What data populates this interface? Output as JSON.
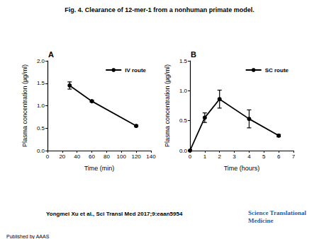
{
  "title": "Fig. 4. Clearance of 12-mer-1 from a nonhuman primate model.",
  "citation": "Yongmei Xu et al., Sci Transl Med 2017;9:eaan5954",
  "journal": "Science Translational Medicine",
  "publisher": "Published by AAAS",
  "chart_data": [
    {
      "type": "line",
      "annotations": [
        "A"
      ],
      "x_label": "Time (min)",
      "y_label": "Plasma concentration (µg/ml)",
      "series": [
        {
          "name": "IV route",
          "color": "#000000",
          "marker": "circle",
          "line_style": "solid",
          "x": [
            30,
            60,
            120
          ],
          "values": [
            1.45,
            1.1,
            0.55
          ],
          "errors": [
            0.08,
            0.02,
            0.02
          ]
        }
      ],
      "xlim": [
        0,
        140
      ],
      "xticks": [
        0,
        20,
        40,
        60,
        80,
        100,
        120,
        140
      ],
      "ylim": [
        0,
        2
      ],
      "yticks": [
        {
          "value": 0,
          "label": "0.0"
        },
        {
          "value": 0.5,
          "label": "0.5"
        },
        {
          "value": 1,
          "label": "1.0"
        },
        {
          "value": 1.5,
          "label": "1.5"
        },
        {
          "value": 2,
          "label": "2.0"
        }
      ],
      "grid": false,
      "legend": "upper right"
    },
    {
      "type": "line",
      "annotations": [
        "B"
      ],
      "x_label": "Time (hours)",
      "y_label": "Plasma concentration (µg/ml)",
      "series": [
        {
          "name": "SC route",
          "color": "#000000",
          "marker": "circle",
          "line_style": "solid",
          "x": [
            0,
            1,
            2,
            4,
            6
          ],
          "values": [
            0,
            0.55,
            0.86,
            0.53,
            0.25
          ],
          "errors": [
            0.02,
            0.08,
            0.15,
            0.15,
            0.02
          ]
        }
      ],
      "xlim": [
        0,
        7
      ],
      "xticks": [
        0,
        1,
        2,
        3,
        4,
        5,
        6,
        7
      ],
      "ylim": [
        0,
        1.5
      ],
      "yticks": [
        {
          "value": 0,
          "label": "0.0"
        },
        {
          "value": 0.5,
          "label": "0.5"
        },
        {
          "value": 1,
          "label": "1.0"
        },
        {
          "value": 1.5,
          "label": "1.5"
        }
      ],
      "grid": false,
      "legend": "upper right"
    }
  ]
}
